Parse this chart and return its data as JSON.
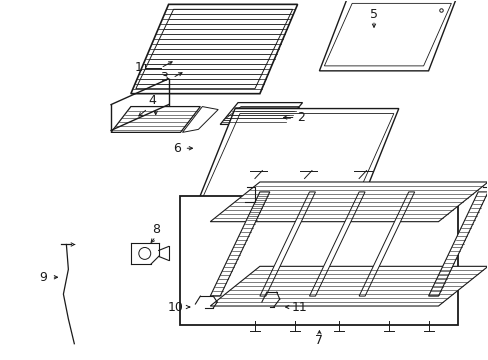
{
  "background_color": "#ffffff",
  "line_color": "#1a1a1a",
  "fig_width": 4.89,
  "fig_height": 3.6,
  "dpi": 100,
  "part1_label": "1",
  "part2_label": "2",
  "part3_label": "3",
  "part4_label": "4",
  "part5_label": "5",
  "part6_label": "6",
  "part7_label": "7",
  "part8_label": "8",
  "part9_label": "9",
  "part10_label": "10",
  "part11_label": "11"
}
